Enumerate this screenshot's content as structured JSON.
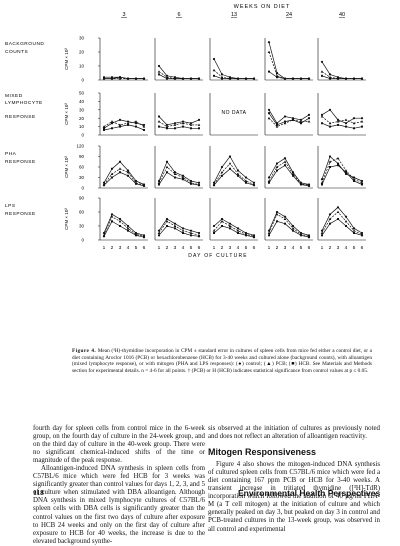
{
  "figure": {
    "top_axis_title": "WEEKS ON DIET",
    "week_labels": [
      "3",
      "6",
      "13",
      "24",
      "40"
    ],
    "bottom_axis_title": "DAY OF CULTURE",
    "no_data_text": "NO DATA",
    "rows": [
      {
        "label_lines": [
          "BACKGROUND",
          "COUNTS"
        ],
        "y_unit": "CPM × 10³",
        "ticks": [
          "0",
          "10",
          "20",
          "30"
        ]
      },
      {
        "label_lines": [
          "MIXED",
          "LYMPHOCYTE",
          "RESPONSE"
        ],
        "y_unit": "CPM × 10³",
        "ticks": [
          "0",
          "10",
          "20",
          "30",
          "40",
          "50"
        ]
      },
      {
        "label_lines": [
          "PHA",
          "RESPONSE"
        ],
        "y_unit": "CPM × 10³",
        "ticks": [
          "0",
          "30",
          "60",
          "90",
          "120"
        ]
      },
      {
        "label_lines": [
          "LPS",
          "RESPONSE"
        ],
        "y_unit": "CPM × 10³",
        "ticks": [
          "0",
          "30",
          "60",
          "90"
        ]
      }
    ],
    "x_ticks_by_week": [
      [
        "1",
        "2",
        "3",
        "4",
        "5",
        "6"
      ],
      [
        "1",
        "2",
        "3",
        "4",
        "5",
        "6"
      ],
      [
        "1",
        "2",
        "3",
        "4",
        "5",
        "6"
      ],
      [
        "1",
        "2",
        "3",
        "4",
        "5",
        "6"
      ],
      [
        "1",
        "2",
        "3",
        "4",
        "5",
        "6"
      ]
    ]
  },
  "chart_data": {
    "type": "line",
    "title": "",
    "xlabel": "DAY OF CULTURE",
    "top_label": "WEEKS ON DIET",
    "x": [
      1,
      2,
      3,
      4,
      5,
      6
    ],
    "series_styles": [
      "solid-dot",
      "dashed-triangle",
      "solid-square"
    ],
    "panels": [
      {
        "row": "BACKGROUND COUNTS",
        "week": "3",
        "ylim": [
          0,
          30
        ],
        "series": [
          [
            2,
            2,
            2,
            1,
            1,
            1
          ],
          [
            1,
            1,
            1,
            1,
            1,
            1
          ],
          [
            1,
            1,
            2,
            1,
            1,
            1
          ]
        ]
      },
      {
        "row": "BACKGROUND COUNTS",
        "week": "6",
        "ylim": [
          0,
          30
        ],
        "series": [
          [
            10,
            3,
            2,
            1,
            1,
            1
          ],
          [
            6,
            2,
            1,
            1,
            1,
            1
          ],
          [
            4,
            1,
            1,
            1,
            1,
            1
          ]
        ]
      },
      {
        "row": "BACKGROUND COUNTS",
        "week": "13",
        "ylim": [
          0,
          30
        ],
        "series": [
          [
            15,
            4,
            2,
            1,
            1,
            1
          ],
          [
            7,
            2,
            1,
            1,
            1,
            1
          ],
          [
            3,
            1,
            1,
            1,
            1,
            1
          ]
        ]
      },
      {
        "row": "BACKGROUND COUNTS",
        "week": "24",
        "ylim": [
          0,
          30
        ],
        "series": [
          [
            27,
            5,
            1,
            1,
            1,
            1
          ],
          [
            20,
            3,
            1,
            1,
            1,
            1
          ],
          [
            6,
            2,
            1,
            1,
            1,
            1
          ]
        ]
      },
      {
        "row": "BACKGROUND COUNTS",
        "week": "40",
        "ylim": [
          0,
          30
        ],
        "series": [
          [
            13,
            4,
            2,
            1,
            1,
            1
          ],
          [
            6,
            2,
            1,
            1,
            1,
            1
          ],
          [
            3,
            1,
            1,
            1,
            1,
            1
          ]
        ]
      },
      {
        "row": "MIXED LYMPHOCYTE RESPONSE",
        "week": "3",
        "ylim": [
          0,
          50
        ],
        "series": [
          [
            8,
            14,
            18,
            16,
            14,
            12
          ],
          [
            10,
            16,
            12,
            14,
            16,
            10
          ],
          [
            6,
            8,
            10,
            12,
            10,
            6
          ]
        ]
      },
      {
        "row": "MIXED LYMPHOCYTE RESPONSE",
        "week": "6",
        "ylim": [
          0,
          50
        ],
        "series": [
          [
            22,
            12,
            14,
            16,
            14,
            18
          ],
          [
            16,
            10,
            12,
            14,
            12,
            12
          ],
          [
            10,
            8,
            8,
            10,
            8,
            8
          ]
        ]
      },
      {
        "row": "MIXED LYMPHOCYTE RESPONSE",
        "week": "13",
        "ylim": [
          0,
          50
        ],
        "series": []
      },
      {
        "row": "MIXED LYMPHOCYTE RESPONSE",
        "week": "24",
        "ylim": [
          0,
          50
        ],
        "series": [
          [
            30,
            14,
            22,
            20,
            18,
            24
          ],
          [
            20,
            10,
            14,
            18,
            16,
            16
          ],
          [
            26,
            12,
            16,
            18,
            14,
            20
          ]
        ]
      },
      {
        "row": "MIXED LYMPHOCYTE RESPONSE",
        "week": "40",
        "ylim": [
          0,
          50
        ],
        "series": [
          [
            24,
            30,
            18,
            14,
            20,
            20
          ],
          [
            22,
            14,
            16,
            18,
            14,
            16
          ],
          [
            14,
            10,
            12,
            10,
            8,
            10
          ]
        ]
      },
      {
        "row": "PHA RESPONSE",
        "week": "3",
        "ylim": [
          0,
          120
        ],
        "series": [
          [
            15,
            55,
            75,
            50,
            20,
            10
          ],
          [
            10,
            40,
            55,
            45,
            15,
            8
          ],
          [
            8,
            30,
            45,
            35,
            12,
            6
          ]
        ]
      },
      {
        "row": "PHA RESPONSE",
        "week": "6",
        "ylim": [
          0,
          120
        ],
        "series": [
          [
            20,
            75,
            45,
            35,
            20,
            15
          ],
          [
            15,
            60,
            40,
            30,
            15,
            10
          ],
          [
            10,
            45,
            30,
            25,
            12,
            8
          ]
        ]
      },
      {
        "row": "PHA RESPONSE",
        "week": "13",
        "ylim": [
          0,
          120
        ],
        "series": [
          [
            15,
            60,
            90,
            50,
            30,
            15
          ],
          [
            10,
            45,
            70,
            40,
            20,
            10
          ],
          [
            8,
            35,
            55,
            35,
            15,
            8
          ]
        ]
      },
      {
        "row": "PHA RESPONSE",
        "week": "24",
        "ylim": [
          0,
          120
        ],
        "series": [
          [
            30,
            70,
            85,
            45,
            15,
            10
          ],
          [
            20,
            60,
            75,
            40,
            12,
            8
          ],
          [
            15,
            50,
            65,
            35,
            10,
            6
          ]
        ]
      },
      {
        "row": "PHA RESPONSE",
        "week": "40",
        "ylim": [
          0,
          120
        ],
        "series": [
          [
            25,
            90,
            70,
            40,
            30,
            20
          ],
          [
            15,
            75,
            85,
            50,
            25,
            15
          ],
          [
            10,
            60,
            65,
            45,
            20,
            10
          ]
        ]
      },
      {
        "row": "LPS RESPONSE",
        "week": "3",
        "ylim": [
          0,
          90
        ],
        "series": [
          [
            15,
            55,
            45,
            30,
            15,
            10
          ],
          [
            10,
            50,
            40,
            25,
            12,
            8
          ],
          [
            8,
            40,
            30,
            20,
            10,
            6
          ]
        ]
      },
      {
        "row": "LPS RESPONSE",
        "week": "6",
        "ylim": [
          0,
          90
        ],
        "series": [
          [
            20,
            45,
            35,
            25,
            20,
            15
          ],
          [
            15,
            40,
            30,
            20,
            15,
            10
          ],
          [
            10,
            30,
            25,
            15,
            10,
            8
          ]
        ]
      },
      {
        "row": "LPS RESPONSE",
        "week": "13",
        "ylim": [
          0,
          90
        ],
        "series": [
          [
            30,
            45,
            35,
            25,
            15,
            10
          ],
          [
            20,
            40,
            30,
            20,
            12,
            8
          ],
          [
            15,
            30,
            25,
            15,
            10,
            6
          ]
        ]
      },
      {
        "row": "LPS RESPONSE",
        "week": "24",
        "ylim": [
          0,
          90
        ],
        "series": [
          [
            20,
            60,
            50,
            30,
            15,
            10
          ],
          [
            15,
            55,
            45,
            25,
            12,
            8
          ],
          [
            10,
            40,
            35,
            20,
            10,
            6
          ]
        ]
      },
      {
        "row": "LPS RESPONSE",
        "week": "40",
        "ylim": [
          0,
          90
        ],
        "series": [
          [
            20,
            55,
            70,
            50,
            25,
            15
          ],
          [
            15,
            45,
            60,
            40,
            20,
            12
          ],
          [
            10,
            35,
            45,
            30,
            15,
            10
          ]
        ]
      }
    ]
  },
  "caption": {
    "label": "Figure 4.",
    "text": "Mean (³H)-thymidine incorporation in CPM ± standard error in cultures of spleen cells from mice fed either a control diet, or a diet containing Aroclor 1016 (PCB) or hexachlorobenzene (HCB) for 3-40 weeks and cultured alone (background counts), with alloantigen (mixed lymphocyte response), or with mitogen (PHA and LPS responses): (●) control; (▲) PCB; (■) HCB. See Materials and Methods section for experimental details. n = 4-6 for all points. † (PCB) or H (HCB) indicates statistical significance from control values at p ≤ 0.05."
  },
  "body": {
    "left_p1": "fourth day for spleen cells from control mice in the 6-week group, on the fourth day of culture in the 24-week group, and on the third day of culture in the 40-week group. There were no significant chemical-induced shifts of the time or magnitude of the peak response.",
    "left_p2": "Alloantigen-induced DNA synthesis in spleen cells from C57BL/6 mice which were fed HCB for 3 weeks was significantly greater than control values for days 1, 2, 3, and 5 of culture when stimulated with DBA alloantigen. Although DNA synthesis in mixed lymphocyte cultures of C57BL/6 spleen cells with DBA cells is significantly greater than the control values on the first two days of culture after exposure to HCB 24 weeks and only on the first day of culture after exposure to HCB for 40 weeks, the increase is due to the elevated background synthe-",
    "right_p1": "sis observed at the initiation of cultures as previously noted and does not reflect an alteration of alloantigen reactivity.",
    "right_heading": "Mitogen Responsiveness",
    "right_p2": "Figure 4 also shows the mitogen-induced DNA synthesis of cultured spleen cells from C57BL/6 mice which were fed a diet containing 167 ppm PCB or HCB for 3-40 weeks. A transient increase in tritiated thymidine ([³H]-TdR) incorporation which followed the addition of 40 µg/ml PHA-M (a T cell mitogen) at the initiation of culture and which generally peaked on day 3, but peaked on day 3 in control and PCB-treated cultures in the 13-week group, was observed in all control and experimental"
  },
  "footer": {
    "page_number": "118",
    "journal": "Environmental Health Perspectives"
  }
}
